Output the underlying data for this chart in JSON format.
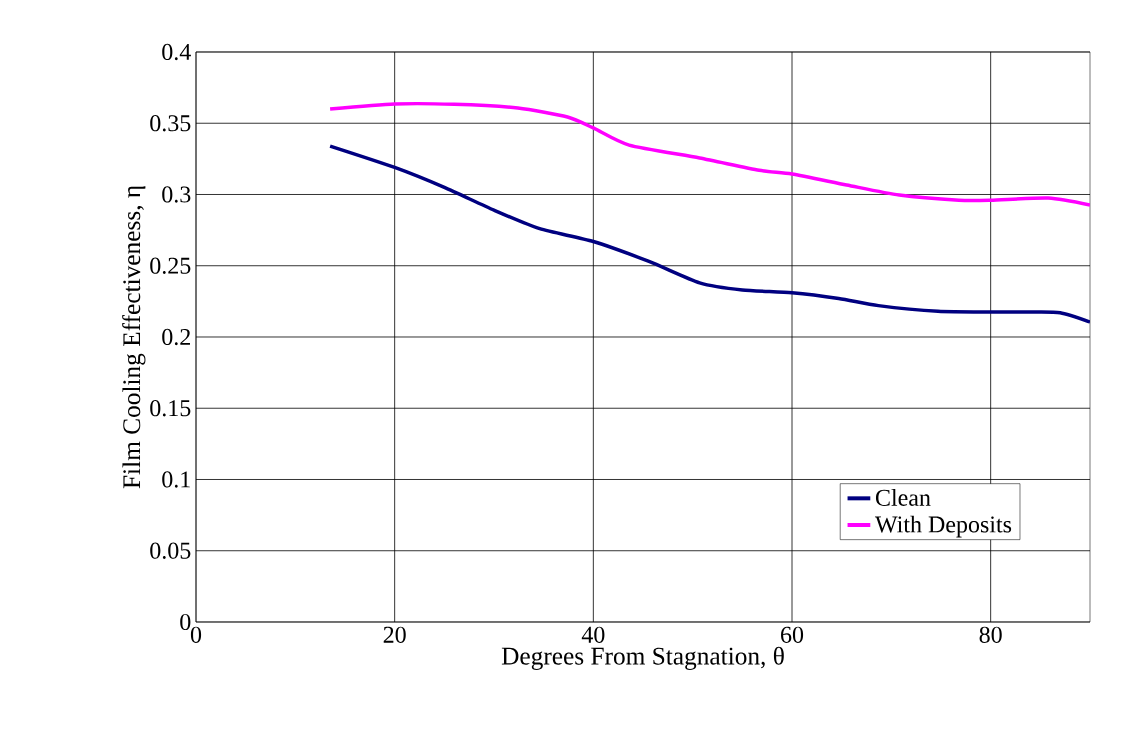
{
  "chart_data": {
    "type": "line",
    "xlabel": "Degrees From Stagnation, θ",
    "ylabel": "Film Cooling Effectiveness, η",
    "xlim": [
      0,
      90
    ],
    "xticks": [
      0,
      20,
      40,
      60,
      80
    ],
    "ylim": [
      0,
      0.4
    ],
    "yticks": [
      0,
      0.05,
      0.1,
      0.15,
      0.2,
      0.25,
      0.3,
      0.35,
      0.4
    ],
    "grid": true,
    "legend": "bottom right",
    "marker": "none",
    "line_style": "solid",
    "series": [
      {
        "name": "Clean",
        "color": "#000080",
        "x": [
          13.5,
          20,
          25,
          30,
          34.6,
          40,
          45.6,
          50.7,
          55,
          60,
          64.7,
          68.7,
          74.7,
          80,
          84,
          87,
          90
        ],
        "values": [
          0.334,
          0.319,
          0.305,
          0.289,
          0.276,
          0.267,
          0.253,
          0.238,
          0.233,
          0.231,
          0.227,
          0.222,
          0.218,
          0.2175,
          0.2175,
          0.217,
          0.2105
        ]
      },
      {
        "name": "With Deposits",
        "color": "#ff00ff",
        "x": [
          13.5,
          20,
          26,
          32.4,
          37.4,
          40,
          43.6,
          50.7,
          56.7,
          60,
          65.5,
          70.8,
          76.8,
          80,
          85.8,
          90
        ],
        "values": [
          0.36,
          0.3635,
          0.3633,
          0.3607,
          0.3544,
          0.3467,
          0.3347,
          0.3256,
          0.317,
          0.3144,
          0.3067,
          0.2996,
          0.296,
          0.296,
          0.2975,
          0.2926
        ]
      }
    ]
  }
}
